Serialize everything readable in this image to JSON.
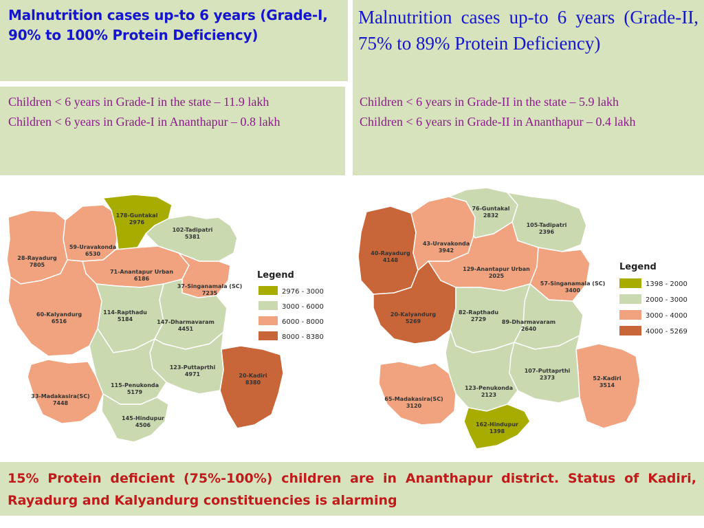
{
  "colors": {
    "panel_bg": "#d6e3bc",
    "title_blue": "#1515d0",
    "info_purple": "#8b1a8b",
    "footer_red": "#c01a1a",
    "olive": "#a8ab00",
    "light_green": "#cad9b0",
    "salmon": "#f0a37e",
    "brown": "#c8663a"
  },
  "left": {
    "title": "Malnutrition cases up-to 6 years (Grade-I, 90% to 100% Protein Deficiency)",
    "info_line1": "Children < 6 years in Grade-I in the state – 11.9 lakh",
    "info_line2": "Children < 6 years in Grade-I in Ananthapur – 0.8 lakh",
    "legend_title": "Legend",
    "legend": [
      {
        "label": "2976 - 3000",
        "color": "#a8ab00"
      },
      {
        "label": "3000 - 6000",
        "color": "#cad9b0"
      },
      {
        "label": "6000 - 8000",
        "color": "#f0a37e"
      },
      {
        "label": "8000 - 8380",
        "color": "#c8663a"
      }
    ],
    "regions": [
      {
        "name": "178-Guntakal",
        "value": "2976"
      },
      {
        "name": "102-Tadipatri",
        "value": "5381"
      },
      {
        "name": "59-Uravakonda",
        "value": "6530"
      },
      {
        "name": "28-Rayadurg",
        "value": "7805"
      },
      {
        "name": "71-Anantapur Urban",
        "value": "6186"
      },
      {
        "name": "37-Singanamala (SC)",
        "value": "7235"
      },
      {
        "name": "60-Kalyandurg",
        "value": "6516"
      },
      {
        "name": "114-Rapthadu",
        "value": "5184"
      },
      {
        "name": "147-Dharmavaram",
        "value": "4451"
      },
      {
        "name": "20-Kadiri",
        "value": "8380"
      },
      {
        "name": "123-Puttaprthi",
        "value": "4971"
      },
      {
        "name": "115-Penukonda",
        "value": "5179"
      },
      {
        "name": "33-Madakasira(SC)",
        "value": "7448"
      },
      {
        "name": "145-Hindupur",
        "value": "4506"
      }
    ]
  },
  "right": {
    "title": "Malnutrition cases up-to 6 years (Grade-II, 75% to 89% Protein Deficiency)",
    "info_line1": "Children < 6 years in Grade-II in the state – 5.9 lakh",
    "info_line2": "Children < 6 years in Grade-II in Ananthapur – 0.4 lakh",
    "legend_title": "Legend",
    "legend": [
      {
        "label": "1398 - 2000",
        "color": "#a8ab00"
      },
      {
        "label": "2000 - 3000",
        "color": "#cad9b0"
      },
      {
        "label": "3000 - 4000",
        "color": "#f0a37e"
      },
      {
        "label": "4000 - 5269",
        "color": "#c8663a"
      }
    ],
    "regions": [
      {
        "name": "76-Guntakal",
        "value": "2832"
      },
      {
        "name": "105-Tadipatri",
        "value": "2396"
      },
      {
        "name": "43-Uravakonda",
        "value": "3942"
      },
      {
        "name": "40-Rayadurg",
        "value": "4148"
      },
      {
        "name": "129-Anantapur Urban",
        "value": "2025"
      },
      {
        "name": "57-Singanamala (SC)",
        "value": "3400"
      },
      {
        "name": "20-Kalyandurg",
        "value": "5269"
      },
      {
        "name": "82-Rapthadu",
        "value": "2729"
      },
      {
        "name": "89-Dharmavaram",
        "value": "2640"
      },
      {
        "name": "52-Kadiri",
        "value": "3514"
      },
      {
        "name": "107-Puttaprthi",
        "value": "2373"
      },
      {
        "name": "123-Penukonda",
        "value": "2123"
      },
      {
        "name": "65-Madakasira(SC)",
        "value": "3120"
      },
      {
        "name": "162-Hindupur",
        "value": "1398"
      }
    ]
  },
  "footer": "15% Protein deficient (75%-100%) children are in Ananthapur district.  Status of Kadiri, Rayadurg and Kalyandurg constituencies is alarming"
}
